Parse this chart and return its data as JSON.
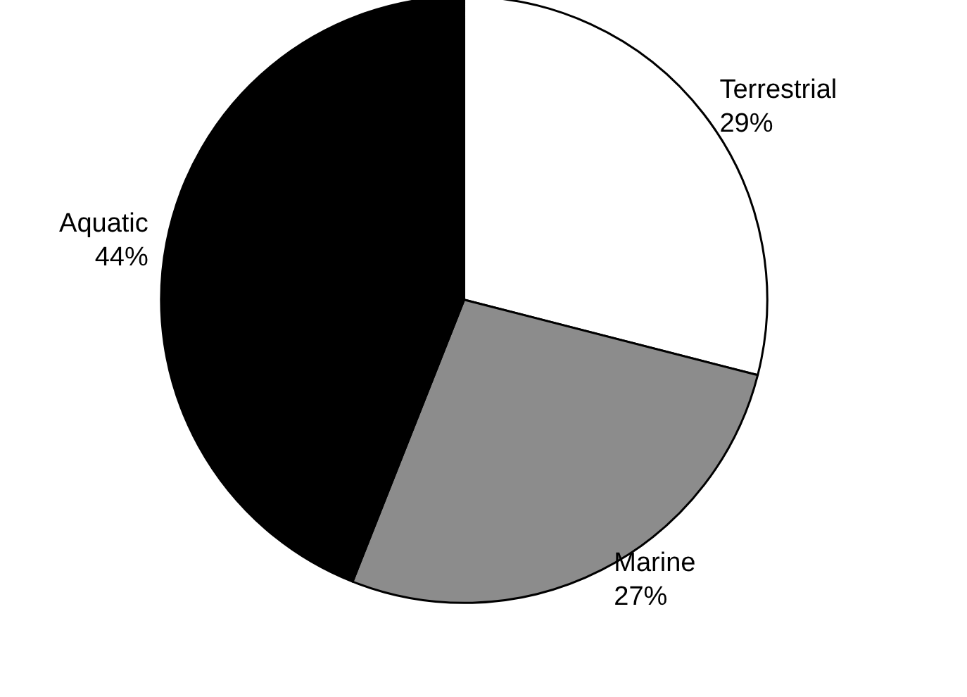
{
  "chart_data": {
    "type": "pie",
    "categories": [
      "Terrestrial",
      "Marine",
      "Aquatic"
    ],
    "values": [
      29,
      27,
      44
    ],
    "value_labels": [
      "29%",
      "27%",
      "44%"
    ],
    "colors": [
      "#ffffff",
      "#8c8c8c",
      "#000000"
    ]
  }
}
